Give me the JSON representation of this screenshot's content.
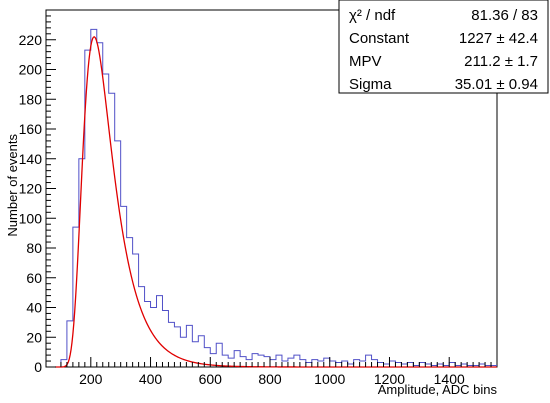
{
  "chart_data": {
    "type": "histogram",
    "xlabel": "Amplitude, ADC bins",
    "ylabel": "Number of events",
    "xlim": [
      50,
      1560
    ],
    "ylim": [
      0,
      240
    ],
    "x_ticks": [
      200,
      400,
      600,
      800,
      1000,
      1200,
      1400
    ],
    "y_ticks": [
      0,
      20,
      40,
      60,
      80,
      100,
      120,
      140,
      160,
      180,
      200,
      220
    ],
    "grid": false,
    "histogram": {
      "color": "#5050c8",
      "bin_width": 20,
      "bins": [
        {
          "x": 60,
          "y": 0
        },
        {
          "x": 80,
          "y": 0
        },
        {
          "x": 100,
          "y": 5
        },
        {
          "x": 120,
          "y": 31
        },
        {
          "x": 140,
          "y": 94
        },
        {
          "x": 160,
          "y": 140
        },
        {
          "x": 180,
          "y": 213
        },
        {
          "x": 200,
          "y": 227
        },
        {
          "x": 220,
          "y": 218
        },
        {
          "x": 240,
          "y": 197
        },
        {
          "x": 260,
          "y": 184
        },
        {
          "x": 280,
          "y": 152
        },
        {
          "x": 300,
          "y": 108
        },
        {
          "x": 320,
          "y": 87
        },
        {
          "x": 340,
          "y": 76
        },
        {
          "x": 360,
          "y": 54
        },
        {
          "x": 380,
          "y": 44
        },
        {
          "x": 400,
          "y": 40
        },
        {
          "x": 420,
          "y": 48
        },
        {
          "x": 440,
          "y": 38
        },
        {
          "x": 460,
          "y": 30
        },
        {
          "x": 480,
          "y": 27
        },
        {
          "x": 500,
          "y": 20
        },
        {
          "x": 520,
          "y": 28
        },
        {
          "x": 540,
          "y": 17
        },
        {
          "x": 560,
          "y": 21
        },
        {
          "x": 580,
          "y": 13
        },
        {
          "x": 600,
          "y": 9
        },
        {
          "x": 620,
          "y": 16
        },
        {
          "x": 640,
          "y": 8
        },
        {
          "x": 660,
          "y": 6
        },
        {
          "x": 680,
          "y": 11
        },
        {
          "x": 700,
          "y": 7
        },
        {
          "x": 720,
          "y": 5
        },
        {
          "x": 740,
          "y": 9
        },
        {
          "x": 760,
          "y": 8
        },
        {
          "x": 780,
          "y": 7
        },
        {
          "x": 800,
          "y": 5
        },
        {
          "x": 820,
          "y": 8
        },
        {
          "x": 840,
          "y": 4
        },
        {
          "x": 860,
          "y": 6
        },
        {
          "x": 880,
          "y": 8
        },
        {
          "x": 900,
          "y": 5
        },
        {
          "x": 920,
          "y": 3
        },
        {
          "x": 940,
          "y": 5
        },
        {
          "x": 960,
          "y": 4
        },
        {
          "x": 980,
          "y": 6
        },
        {
          "x": 1000,
          "y": 4
        },
        {
          "x": 1020,
          "y": 3
        },
        {
          "x": 1040,
          "y": 4
        },
        {
          "x": 1060,
          "y": 2
        },
        {
          "x": 1080,
          "y": 5
        },
        {
          "x": 1100,
          "y": 4
        },
        {
          "x": 1120,
          "y": 8
        },
        {
          "x": 1140,
          "y": 5
        },
        {
          "x": 1160,
          "y": 3
        },
        {
          "x": 1180,
          "y": 2
        },
        {
          "x": 1200,
          "y": 4
        },
        {
          "x": 1220,
          "y": 3
        },
        {
          "x": 1240,
          "y": 2
        },
        {
          "x": 1260,
          "y": 3
        },
        {
          "x": 1280,
          "y": 1
        },
        {
          "x": 1300,
          "y": 3
        },
        {
          "x": 1320,
          "y": 2
        },
        {
          "x": 1340,
          "y": 1
        },
        {
          "x": 1360,
          "y": 2
        },
        {
          "x": 1380,
          "y": 1
        },
        {
          "x": 1400,
          "y": 3
        },
        {
          "x": 1420,
          "y": 1
        },
        {
          "x": 1440,
          "y": 2
        },
        {
          "x": 1460,
          "y": 1
        },
        {
          "x": 1480,
          "y": 1
        },
        {
          "x": 1500,
          "y": 2
        },
        {
          "x": 1520,
          "y": 1
        },
        {
          "x": 1540,
          "y": 1
        }
      ]
    },
    "fit": {
      "function": "landau",
      "color": "#e00000",
      "constant": 1227,
      "mpv": 211.2,
      "sigma": 35.01
    },
    "stats_box": {
      "position": "top-right",
      "rows": [
        {
          "label": "χ² / ndf",
          "value": "81.36 / 83"
        },
        {
          "label": "Constant",
          "value": "1227 ± 42.4"
        },
        {
          "label": "MPV",
          "value": "211.2 ± 1.7"
        },
        {
          "label": "Sigma",
          "value": "35.01 ± 0.94"
        }
      ]
    }
  }
}
